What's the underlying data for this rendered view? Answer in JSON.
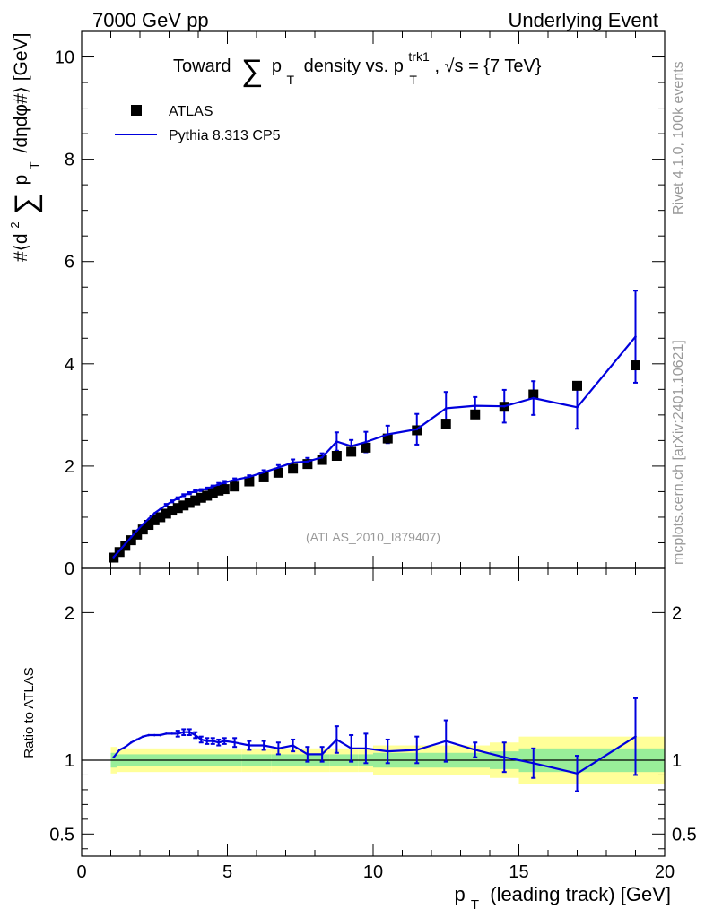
{
  "header": {
    "left": "7000 GeV pp",
    "right": "Underlying Event"
  },
  "side": {
    "rivet": "Rivet 4.1.0,  100k events",
    "mcplots": "mcplots.cern.ch [arXiv:2401.10621]"
  },
  "colors": {
    "mc": "#0000dd",
    "data": "#000000",
    "band_inner": "#99ee99",
    "band_outer": "#ffff99",
    "watermark": "#999999"
  },
  "chart_data": [
    {
      "type": "scatter",
      "name": "main",
      "title_parts": {
        "pre": "Toward",
        "sum": "∑",
        "p": "p",
        "sub_T": "T",
        "mid": "density vs. p",
        "sup_trk": "trk1",
        "sub_T2": "T",
        "post": ", √s = {7 TeV}"
      },
      "ylabel_parts": {
        "pre": "#⟨d",
        "sup2": "2",
        "sum": "∑",
        "p": "p",
        "subT": "T",
        "post": "/dηdφ#⟩ [GeV]"
      },
      "xlim": [
        0,
        20
      ],
      "ylim": [
        0,
        10.5
      ],
      "yticks": [
        0,
        2,
        4,
        6,
        8,
        10
      ],
      "watermark": "(ATLAS_2010_I879407)",
      "legend": {
        "position": "top-left",
        "data_label": "ATLAS",
        "mc_label": "Pythia 8.313 CP5"
      },
      "series": [
        {
          "name": "ATLAS",
          "kind": "markers",
          "x": [
            1.1,
            1.3,
            1.5,
            1.7,
            1.9,
            2.1,
            2.3,
            2.5,
            2.7,
            2.9,
            3.1,
            3.3,
            3.5,
            3.7,
            3.9,
            4.1,
            4.3,
            4.5,
            4.7,
            4.9,
            5.25,
            5.75,
            6.25,
            6.75,
            7.25,
            7.75,
            8.25,
            8.75,
            9.25,
            9.75,
            10.5,
            11.5,
            12.5,
            13.5,
            14.5,
            15.5,
            17.0,
            19.0
          ],
          "y": [
            0.21,
            0.32,
            0.44,
            0.55,
            0.66,
            0.76,
            0.85,
            0.94,
            1.0,
            1.07,
            1.13,
            1.18,
            1.23,
            1.28,
            1.33,
            1.38,
            1.42,
            1.47,
            1.52,
            1.55,
            1.6,
            1.7,
            1.78,
            1.87,
            1.95,
            2.04,
            2.12,
            2.2,
            2.28,
            2.36,
            2.54,
            2.7,
            2.83,
            3.01,
            3.16,
            3.4,
            3.57,
            3.97
          ]
        },
        {
          "name": "Pythia 8.313 CP5",
          "kind": "line",
          "x": [
            1.1,
            1.3,
            1.5,
            1.7,
            1.9,
            2.1,
            2.3,
            2.5,
            2.7,
            2.9,
            3.1,
            3.3,
            3.5,
            3.7,
            3.9,
            4.1,
            4.3,
            4.5,
            4.7,
            4.9,
            5.25,
            5.75,
            6.25,
            6.75,
            7.25,
            7.75,
            8.25,
            8.75,
            9.25,
            9.75,
            10.5,
            11.5,
            12.5,
            13.5,
            14.5,
            15.5,
            17.0,
            19.0
          ],
          "y": [
            0.22,
            0.35,
            0.48,
            0.61,
            0.74,
            0.86,
            0.97,
            1.08,
            1.16,
            1.24,
            1.31,
            1.37,
            1.43,
            1.47,
            1.51,
            1.53,
            1.56,
            1.6,
            1.64,
            1.68,
            1.73,
            1.79,
            1.88,
            1.97,
            2.07,
            2.09,
            2.17,
            2.48,
            2.39,
            2.47,
            2.62,
            2.72,
            3.13,
            3.18,
            3.17,
            3.33,
            3.15,
            4.53
          ],
          "err": [
            0.01,
            0.01,
            0.01,
            0.01,
            0.01,
            0.01,
            0.01,
            0.01,
            0.01,
            0.02,
            0.02,
            0.02,
            0.02,
            0.02,
            0.02,
            0.02,
            0.02,
            0.02,
            0.03,
            0.03,
            0.03,
            0.03,
            0.04,
            0.05,
            0.06,
            0.07,
            0.08,
            0.18,
            0.12,
            0.2,
            0.17,
            0.3,
            0.32,
            0.17,
            0.32,
            0.33,
            0.42,
            0.9
          ]
        }
      ]
    },
    {
      "type": "line",
      "name": "ratio",
      "ylabel": "Ratio to ATLAS",
      "xlabel_parts": {
        "p": "p",
        "sub": "T",
        "post": " (leading track) [GeV]"
      },
      "xlim": [
        0,
        20
      ],
      "ylim": [
        0.35,
        2.3
      ],
      "xticks": [
        0,
        5,
        10,
        15,
        20
      ],
      "yticks": [
        0.5,
        1,
        2
      ],
      "band": {
        "edges": [
          1.0,
          1.2,
          1.4,
          1.6,
          1.8,
          2.0,
          2.2,
          2.4,
          2.6,
          2.8,
          3.0,
          3.2,
          3.4,
          3.6,
          3.8,
          4.0,
          4.2,
          4.4,
          4.6,
          4.8,
          5.0,
          5.5,
          6.0,
          6.5,
          7.0,
          7.5,
          8.0,
          8.5,
          9.0,
          9.5,
          10.0,
          11.0,
          12.0,
          13.0,
          14.0,
          15.0,
          16.0,
          18.0,
          20.0
        ],
        "inner": [
          0.05,
          0.04,
          0.04,
          0.04,
          0.04,
          0.04,
          0.04,
          0.04,
          0.04,
          0.04,
          0.04,
          0.04,
          0.04,
          0.04,
          0.04,
          0.04,
          0.04,
          0.04,
          0.04,
          0.04,
          0.04,
          0.04,
          0.04,
          0.04,
          0.04,
          0.04,
          0.04,
          0.04,
          0.04,
          0.04,
          0.05,
          0.05,
          0.05,
          0.05,
          0.06,
          0.08,
          0.08,
          0.08
        ],
        "outer": [
          0.09,
          0.08,
          0.08,
          0.08,
          0.08,
          0.08,
          0.08,
          0.08,
          0.08,
          0.08,
          0.08,
          0.08,
          0.08,
          0.08,
          0.08,
          0.08,
          0.08,
          0.08,
          0.08,
          0.08,
          0.08,
          0.08,
          0.08,
          0.08,
          0.08,
          0.08,
          0.08,
          0.08,
          0.08,
          0.08,
          0.1,
          0.1,
          0.1,
          0.1,
          0.12,
          0.16,
          0.16,
          0.16
        ]
      },
      "series": [
        {
          "name": "Pythia 8.313 CP5 / ATLAS",
          "x": [
            1.1,
            1.3,
            1.5,
            1.7,
            1.9,
            2.1,
            2.3,
            2.5,
            2.7,
            2.9,
            3.1,
            3.3,
            3.5,
            3.7,
            3.9,
            4.1,
            4.3,
            4.5,
            4.7,
            4.9,
            5.25,
            5.75,
            6.25,
            6.75,
            7.25,
            7.75,
            8.25,
            8.75,
            9.25,
            9.75,
            10.5,
            11.5,
            12.5,
            13.5,
            14.5,
            15.5,
            17.0,
            19.0
          ],
          "y": [
            1.02,
            1.07,
            1.09,
            1.12,
            1.14,
            1.16,
            1.17,
            1.17,
            1.17,
            1.18,
            1.18,
            1.18,
            1.19,
            1.19,
            1.17,
            1.14,
            1.13,
            1.13,
            1.12,
            1.13,
            1.12,
            1.1,
            1.1,
            1.08,
            1.1,
            1.04,
            1.04,
            1.14,
            1.08,
            1.08,
            1.06,
            1.07,
            1.13,
            1.07,
            1.02,
            0.98,
            0.91,
            1.16
          ],
          "err": [
            0.01,
            0.01,
            0.01,
            0.01,
            0.01,
            0.01,
            0.01,
            0.01,
            0.01,
            0.01,
            0.01,
            0.02,
            0.02,
            0.02,
            0.02,
            0.02,
            0.02,
            0.02,
            0.02,
            0.02,
            0.03,
            0.03,
            0.03,
            0.04,
            0.04,
            0.05,
            0.05,
            0.09,
            0.09,
            0.1,
            0.08,
            0.09,
            0.14,
            0.05,
            0.1,
            0.1,
            0.12,
            0.26
          ]
        }
      ]
    }
  ]
}
